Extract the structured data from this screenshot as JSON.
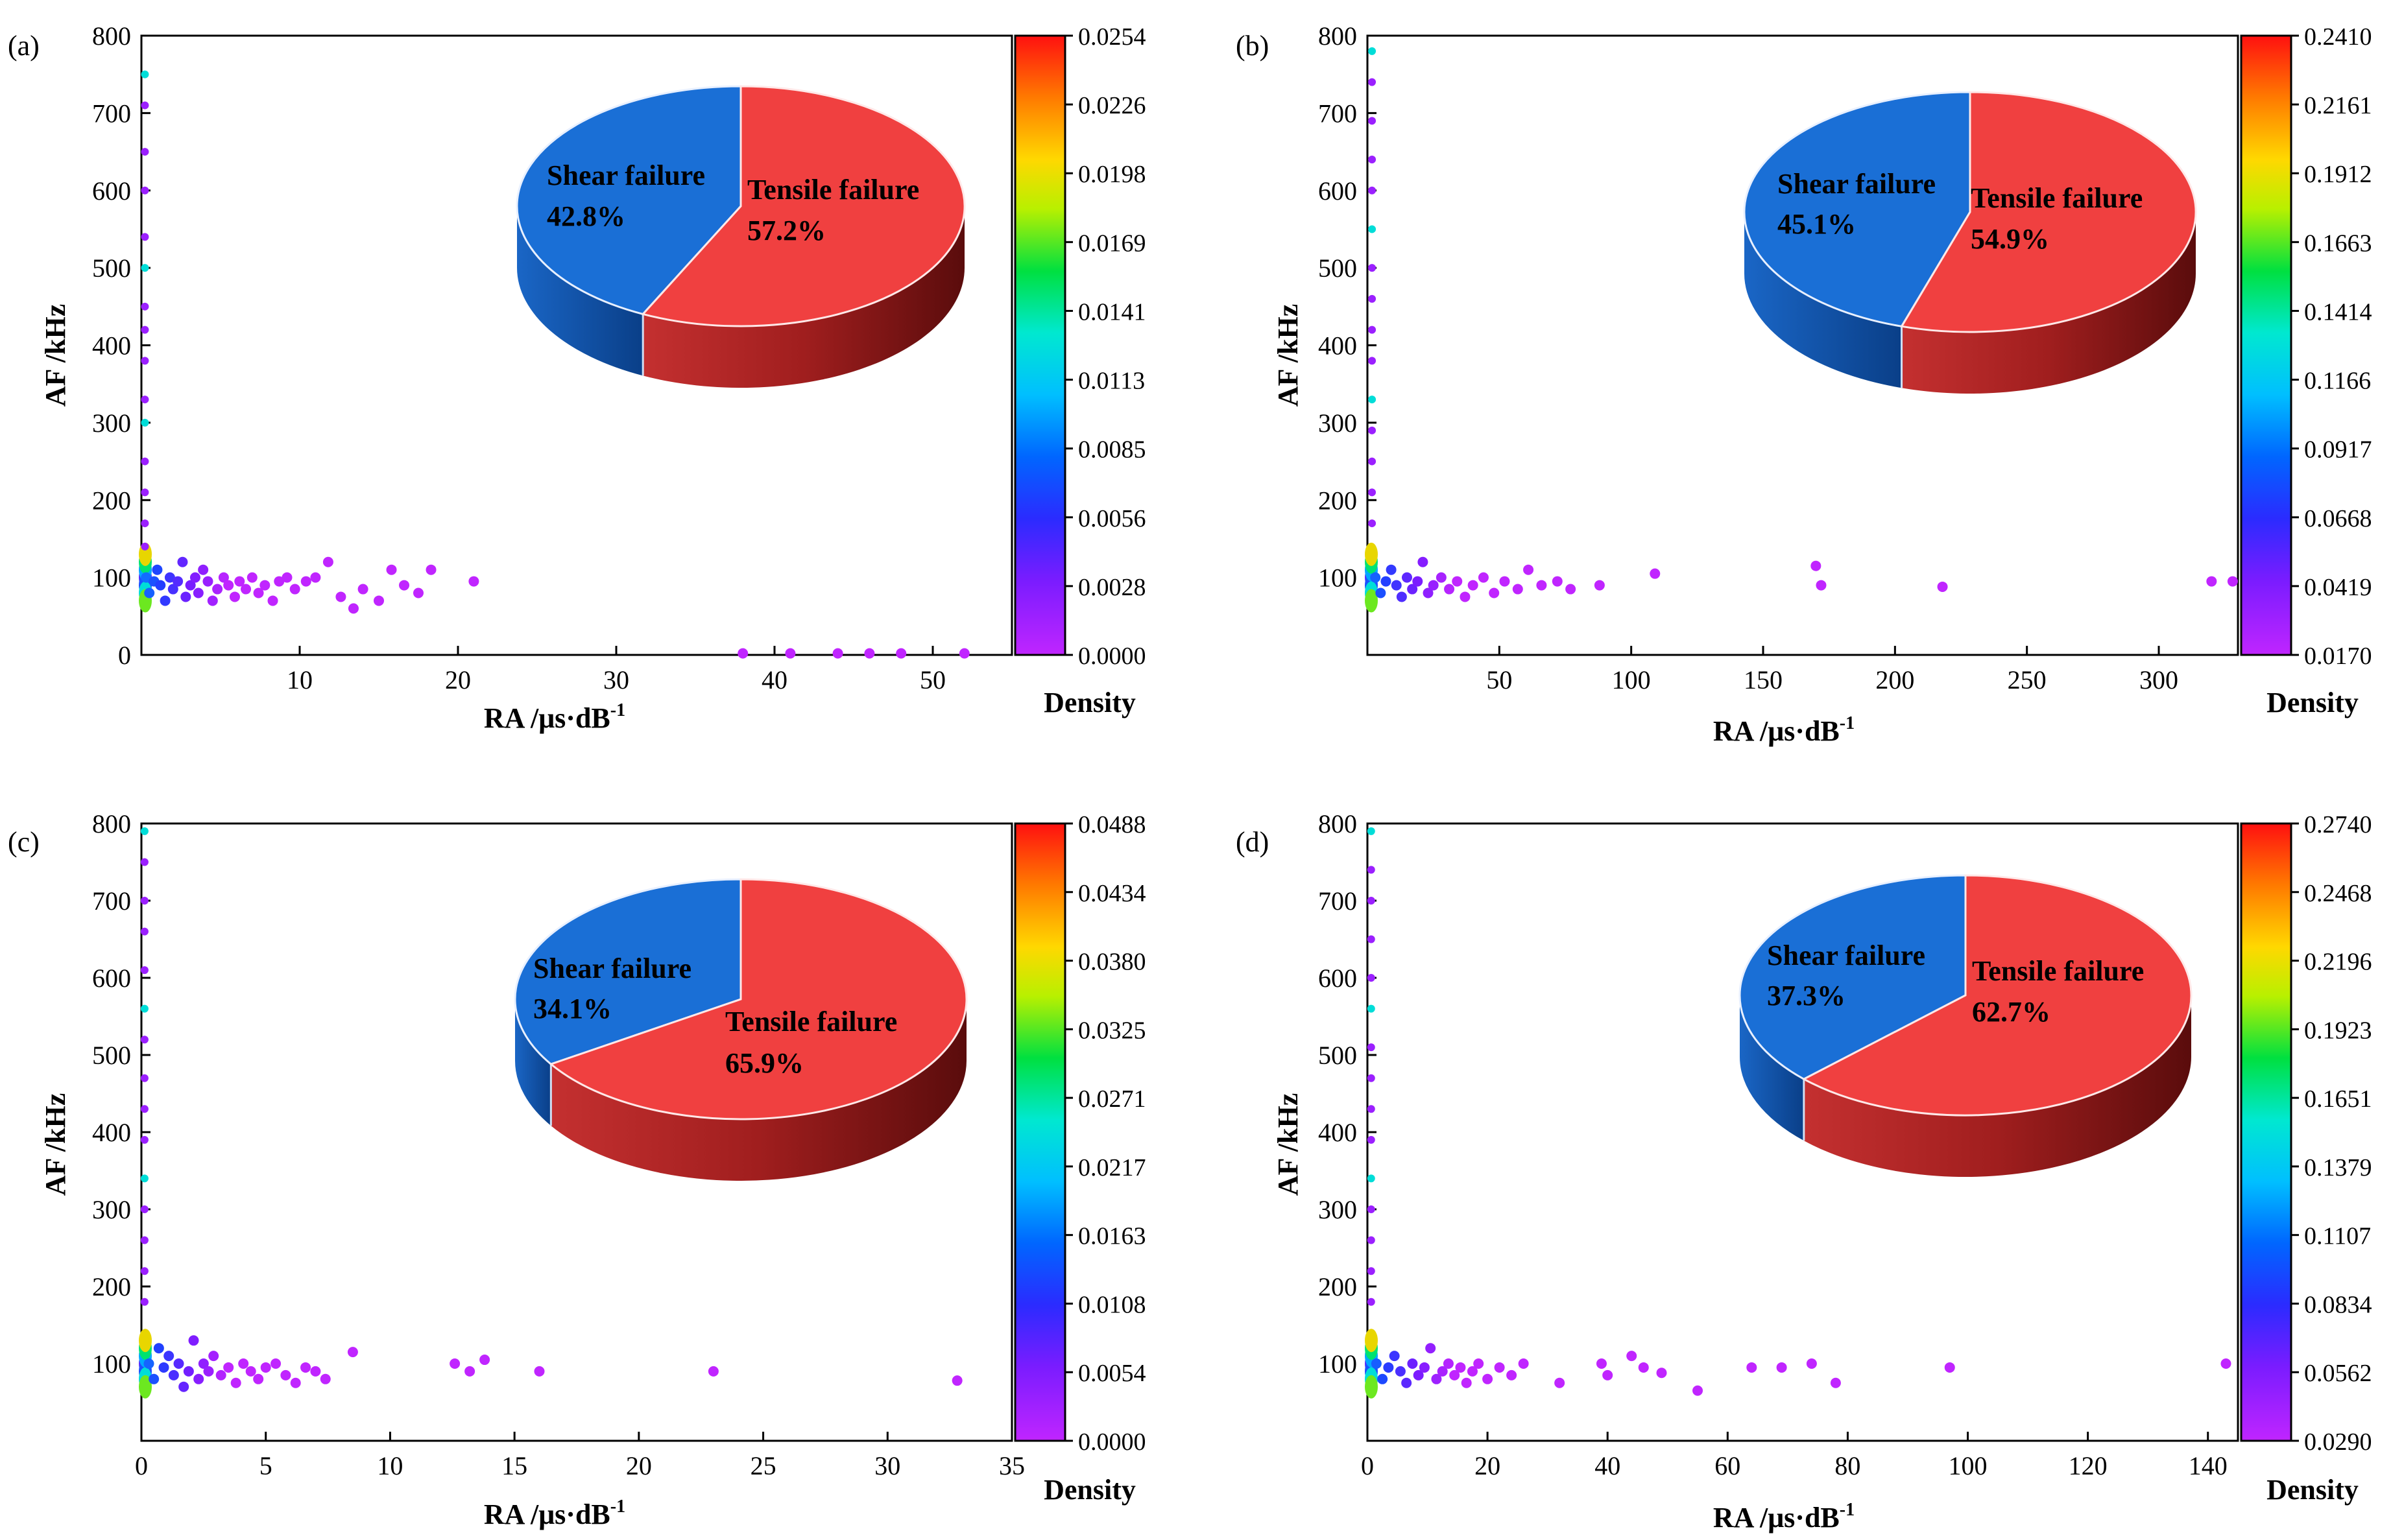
{
  "chart_data": [
    {
      "type": "scatter",
      "panel_label": "(a)",
      "xlabel": "RA /μs·dB",
      "xlabel_sup": "-1",
      "ylabel": "AF /kHz",
      "xlim": [
        0,
        55
      ],
      "ylim": [
        0,
        800
      ],
      "xticks": [
        10,
        20,
        30,
        40,
        50
      ],
      "yticks": [
        0,
        100,
        200,
        300,
        400,
        500,
        600,
        700,
        800
      ],
      "colorbar": {
        "label": "Density",
        "min": 0.0,
        "max": 0.0254,
        "ticks": [
          "0.0000",
          "0.0028",
          "0.0056",
          "0.0085",
          "0.0113",
          "0.0141",
          "0.0169",
          "0.0198",
          "0.0226",
          "0.0254"
        ]
      },
      "pie": {
        "slices": [
          {
            "name": "Shear failure",
            "value": 42.8,
            "label": "42.8%",
            "color": "#1a6fd6"
          },
          {
            "name": "Tensile failure",
            "value": 57.2,
            "label": "57.2%",
            "color": "#f04040"
          }
        ]
      },
      "points": [
        [
          0.3,
          100
        ],
        [
          0.5,
          80
        ],
        [
          0.8,
          95
        ],
        [
          1.0,
          110
        ],
        [
          1.2,
          90
        ],
        [
          1.5,
          70
        ],
        [
          1.8,
          100
        ],
        [
          2.0,
          85
        ],
        [
          2.3,
          95
        ],
        [
          2.6,
          120
        ],
        [
          2.8,
          75
        ],
        [
          3.1,
          90
        ],
        [
          3.4,
          100
        ],
        [
          3.6,
          80
        ],
        [
          3.9,
          110
        ],
        [
          4.2,
          95
        ],
        [
          4.5,
          70
        ],
        [
          4.8,
          85
        ],
        [
          5.2,
          100
        ],
        [
          5.5,
          90
        ],
        [
          5.9,
          75
        ],
        [
          6.2,
          95
        ],
        [
          6.6,
          85
        ],
        [
          7.0,
          100
        ],
        [
          7.4,
          80
        ],
        [
          7.8,
          90
        ],
        [
          8.3,
          70
        ],
        [
          8.7,
          95
        ],
        [
          9.2,
          100
        ],
        [
          9.7,
          85
        ],
        [
          10.4,
          95
        ],
        [
          11.0,
          100
        ],
        [
          11.8,
          120
        ],
        [
          12.6,
          75
        ],
        [
          13.4,
          60
        ],
        [
          14.0,
          85
        ],
        [
          15.0,
          70
        ],
        [
          15.8,
          110
        ],
        [
          16.6,
          90
        ],
        [
          17.5,
          80
        ],
        [
          18.3,
          110
        ],
        [
          21.0,
          95
        ],
        [
          38,
          2
        ],
        [
          41,
          2
        ],
        [
          44,
          2
        ],
        [
          46,
          2
        ],
        [
          48,
          2
        ],
        [
          52,
          2
        ]
      ],
      "axis_points": [
        [
          0.1,
          750
        ],
        [
          0.1,
          710
        ],
        [
          0.1,
          650
        ],
        [
          0.1,
          600
        ],
        [
          0.1,
          540
        ],
        [
          0.1,
          500
        ],
        [
          0.1,
          450
        ],
        [
          0.1,
          420
        ],
        [
          0.1,
          380
        ],
        [
          0.1,
          330
        ],
        [
          0.1,
          300
        ],
        [
          0.1,
          250
        ],
        [
          0.1,
          210
        ],
        [
          0.1,
          170
        ],
        [
          0.1,
          140
        ]
      ]
    },
    {
      "type": "scatter",
      "panel_label": "(b)",
      "xlabel": "RA /μs·dB",
      "xlabel_sup": "-1",
      "ylabel": "AF /kHz",
      "xlim": [
        0,
        330
      ],
      "ylim": [
        0,
        800
      ],
      "xticks": [
        50,
        100,
        150,
        200,
        250,
        300
      ],
      "yticks": [
        100,
        200,
        300,
        400,
        500,
        600,
        700,
        800
      ],
      "colorbar": {
        "label": "Density",
        "min": 0.017,
        "max": 0.241,
        "ticks": [
          "0.0170",
          "0.0419",
          "0.0668",
          "0.0917",
          "0.1166",
          "0.1414",
          "0.1663",
          "0.1912",
          "0.2161",
          "0.2410"
        ]
      },
      "pie": {
        "slices": [
          {
            "name": "Shear failure",
            "value": 45.1,
            "label": "45.1%",
            "color": "#1a6fd6"
          },
          {
            "name": "Tensile failure",
            "value": 54.9,
            "label": "54.9%",
            "color": "#f04040"
          }
        ]
      },
      "points": [
        [
          3,
          100
        ],
        [
          5,
          80
        ],
        [
          7,
          95
        ],
        [
          9,
          110
        ],
        [
          11,
          90
        ],
        [
          13,
          75
        ],
        [
          15,
          100
        ],
        [
          17,
          85
        ],
        [
          19,
          95
        ],
        [
          21,
          120
        ],
        [
          23,
          80
        ],
        [
          25,
          90
        ],
        [
          28,
          100
        ],
        [
          31,
          85
        ],
        [
          34,
          95
        ],
        [
          37,
          75
        ],
        [
          40,
          90
        ],
        [
          44,
          100
        ],
        [
          48,
          80
        ],
        [
          52,
          95
        ],
        [
          57,
          85
        ],
        [
          61,
          110
        ],
        [
          66,
          90
        ],
        [
          72,
          95
        ],
        [
          77,
          85
        ],
        [
          88,
          90
        ],
        [
          109,
          105
        ],
        [
          170,
          115
        ],
        [
          172,
          90
        ],
        [
          218,
          88
        ],
        [
          320,
          95
        ],
        [
          328,
          95
        ]
      ],
      "axis_points": [
        [
          1,
          780
        ],
        [
          1,
          740
        ],
        [
          1,
          690
        ],
        [
          1,
          640
        ],
        [
          1,
          600
        ],
        [
          1,
          550
        ],
        [
          1,
          500
        ],
        [
          1,
          460
        ],
        [
          1,
          420
        ],
        [
          1,
          380
        ],
        [
          1,
          330
        ],
        [
          1,
          290
        ],
        [
          1,
          250
        ],
        [
          1,
          210
        ],
        [
          1,
          170
        ]
      ]
    },
    {
      "type": "scatter",
      "panel_label": "(c)",
      "xlabel": "RA /μs·dB",
      "xlabel_sup": "-1",
      "ylabel": "AF /kHz",
      "xlim": [
        0,
        35
      ],
      "ylim": [
        0,
        800
      ],
      "xticks": [
        0,
        5,
        10,
        15,
        20,
        25,
        30,
        35
      ],
      "yticks": [
        100,
        200,
        300,
        400,
        500,
        600,
        700,
        800
      ],
      "colorbar": {
        "label": "Density",
        "min": 0.0,
        "max": 0.0488,
        "ticks": [
          "0.0000",
          "0.0054",
          "0.0108",
          "0.0163",
          "0.0217",
          "0.0271",
          "0.0325",
          "0.0380",
          "0.0434",
          "0.0488"
        ]
      },
      "pie": {
        "slices": [
          {
            "name": "Shear failure",
            "value": 34.1,
            "label": "34.1%",
            "color": "#1a6fd6"
          },
          {
            "name": "Tensile failure",
            "value": 65.9,
            "label": "65.9%",
            "color": "#f04040"
          }
        ]
      },
      "points": [
        [
          0.3,
          100
        ],
        [
          0.5,
          80
        ],
        [
          0.7,
          120
        ],
        [
          0.9,
          95
        ],
        [
          1.1,
          110
        ],
        [
          1.3,
          85
        ],
        [
          1.5,
          100
        ],
        [
          1.7,
          70
        ],
        [
          1.9,
          90
        ],
        [
          2.1,
          130
        ],
        [
          2.3,
          80
        ],
        [
          2.5,
          100
        ],
        [
          2.7,
          90
        ],
        [
          2.9,
          110
        ],
        [
          3.2,
          85
        ],
        [
          3.5,
          95
        ],
        [
          3.8,
          75
        ],
        [
          4.1,
          100
        ],
        [
          4.4,
          90
        ],
        [
          4.7,
          80
        ],
        [
          5.0,
          95
        ],
        [
          5.4,
          100
        ],
        [
          5.8,
          85
        ],
        [
          6.2,
          75
        ],
        [
          6.6,
          95
        ],
        [
          7.0,
          90
        ],
        [
          7.4,
          80
        ],
        [
          8.5,
          115
        ],
        [
          12.6,
          100
        ],
        [
          13.2,
          90
        ],
        [
          13.8,
          105
        ],
        [
          16.0,
          90
        ],
        [
          23.0,
          90
        ],
        [
          32.8,
          78
        ]
      ],
      "axis_points": [
        [
          0.05,
          790
        ],
        [
          0.05,
          750
        ],
        [
          0.05,
          700
        ],
        [
          0.05,
          660
        ],
        [
          0.05,
          610
        ],
        [
          0.05,
          560
        ],
        [
          0.05,
          520
        ],
        [
          0.05,
          470
        ],
        [
          0.05,
          430
        ],
        [
          0.05,
          390
        ],
        [
          0.05,
          340
        ],
        [
          0.05,
          300
        ],
        [
          0.05,
          260
        ],
        [
          0.05,
          220
        ],
        [
          0.05,
          180
        ]
      ]
    },
    {
      "type": "scatter",
      "panel_label": "(d)",
      "xlabel": "RA /μs·dB",
      "xlabel_sup": "-1",
      "ylabel": "AF /kHz",
      "xlim": [
        0,
        145
      ],
      "ylim": [
        0,
        800
      ],
      "xticks": [
        0,
        20,
        40,
        60,
        80,
        100,
        120,
        140
      ],
      "yticks": [
        100,
        200,
        300,
        400,
        500,
        600,
        700,
        800
      ],
      "colorbar": {
        "label": "Density",
        "min": 0.029,
        "max": 0.274,
        "ticks": [
          "0.0290",
          "0.0562",
          "0.0834",
          "0.1107",
          "0.1379",
          "0.1651",
          "0.1923",
          "0.2196",
          "0.2468",
          "0.2740"
        ]
      },
      "pie": {
        "slices": [
          {
            "name": "Shear failure",
            "value": 37.3,
            "label": "37.3%",
            "color": "#1a6fd6"
          },
          {
            "name": "Tensile failure",
            "value": 62.7,
            "label": "62.7%",
            "color": "#f04040"
          }
        ]
      },
      "points": [
        [
          1.5,
          100
        ],
        [
          2.5,
          80
        ],
        [
          3.5,
          95
        ],
        [
          4.5,
          110
        ],
        [
          5.5,
          90
        ],
        [
          6.5,
          75
        ],
        [
          7.5,
          100
        ],
        [
          8.5,
          85
        ],
        [
          9.5,
          95
        ],
        [
          10.5,
          120
        ],
        [
          11.5,
          80
        ],
        [
          12.5,
          90
        ],
        [
          13.5,
          100
        ],
        [
          14.5,
          85
        ],
        [
          15.5,
          95
        ],
        [
          16.5,
          75
        ],
        [
          17.5,
          90
        ],
        [
          18.5,
          100
        ],
        [
          20,
          80
        ],
        [
          22,
          95
        ],
        [
          24,
          85
        ],
        [
          26,
          100
        ],
        [
          32,
          75
        ],
        [
          39,
          100
        ],
        [
          40,
          85
        ],
        [
          44,
          110
        ],
        [
          46,
          95
        ],
        [
          49,
          88
        ],
        [
          55,
          65
        ],
        [
          64,
          95
        ],
        [
          69,
          95
        ],
        [
          74,
          100
        ],
        [
          78,
          75
        ],
        [
          97,
          95
        ],
        [
          143,
          100
        ]
      ],
      "axis_points": [
        [
          0.3,
          790
        ],
        [
          0.3,
          740
        ],
        [
          0.3,
          700
        ],
        [
          0.3,
          650
        ],
        [
          0.3,
          600
        ],
        [
          0.3,
          560
        ],
        [
          0.3,
          510
        ],
        [
          0.3,
          470
        ],
        [
          0.3,
          430
        ],
        [
          0.3,
          390
        ],
        [
          0.3,
          340
        ],
        [
          0.3,
          300
        ],
        [
          0.3,
          260
        ],
        [
          0.3,
          220
        ],
        [
          0.3,
          180
        ]
      ]
    }
  ]
}
